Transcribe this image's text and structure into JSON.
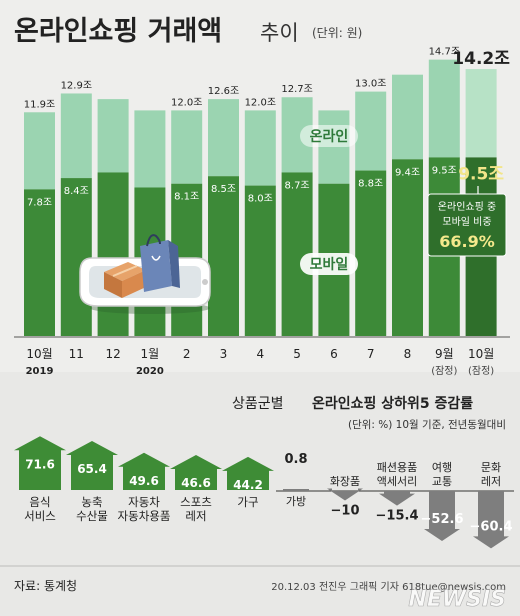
{
  "header": {
    "title": "온라인쇼핑 거래액",
    "title_suffix": "추이",
    "unit": "(단위: 원)"
  },
  "chart_data": [
    {
      "type": "bar",
      "title": "온라인쇼핑 거래액 추이",
      "unit": "(단위: 원)",
      "categories": [
        "10월",
        "11",
        "12",
        "1월",
        "2",
        "3",
        "4",
        "5",
        "6",
        "7",
        "8",
        "9월",
        "10월"
      ],
      "year_labels": [
        {
          "index": 0,
          "text": "2019"
        },
        {
          "index": 3,
          "text": "2020"
        }
      ],
      "sublabels": [
        {
          "index": 11,
          "text": "(잠정)"
        },
        {
          "index": 12,
          "text": "(잠정)"
        }
      ],
      "total_values": [
        11.9,
        12.9,
        12.6,
        12.0,
        12.0,
        12.6,
        12.0,
        12.7,
        12.0,
        13.0,
        13.9,
        14.7,
        14.2
      ],
      "mobile_values": [
        7.8,
        8.4,
        8.7,
        7.9,
        8.1,
        8.5,
        8.0,
        8.7,
        8.1,
        8.8,
        9.4,
        9.5,
        9.5
      ],
      "total_labels": [
        "11.9조",
        "12.9조",
        "",
        "",
        "12.0조",
        "12.6조",
        "12.0조",
        "12.7조",
        "",
        "13.0조",
        "",
        "14.7조",
        "14.2조"
      ],
      "mobile_labels": [
        "7.8조",
        "8.4조",
        "",
        "",
        "8.1조",
        "8.5조",
        "8.0조",
        "8.7조",
        "",
        "8.8조",
        "9.4조",
        "9.5조",
        "9.5조"
      ],
      "series": [
        {
          "name": "온라인",
          "color": "#9bd4b1"
        },
        {
          "name": "모바일",
          "color": "#3d8a38"
        }
      ],
      "ylim": [
        0,
        15
      ],
      "callout": {
        "line1": "온라인쇼핑 중",
        "line2": "모바일 비중",
        "value": "66.9%"
      }
    },
    {
      "type": "bar",
      "title": "상품군별 온라인쇼핑 상하위5 증감률",
      "title_prefix": "상품군별",
      "title_bold": "온라인쇼핑 상하위5 증감률",
      "subtitle": "(단위: %) 10월 기준, 전년동월대비",
      "top5": [
        {
          "label": [
            "음식",
            "서비스"
          ],
          "value": 71.6
        },
        {
          "label": [
            "농축",
            "수산물"
          ],
          "value": 65.4
        },
        {
          "label": [
            "자동차",
            "자동차용품"
          ],
          "value": 49.6
        },
        {
          "label": [
            "스포츠",
            "레저"
          ],
          "value": 46.6
        },
        {
          "label": [
            "가구"
          ],
          "value": 44.2
        }
      ],
      "bottom5": [
        {
          "label": [
            "가방"
          ],
          "value": 0.8,
          "value_text": "0.8"
        },
        {
          "label": [
            "화장품"
          ],
          "value": -10,
          "value_text": "−10"
        },
        {
          "label": [
            "패션용품",
            "액세서리"
          ],
          "value": -15.4,
          "value_text": "−15.4"
        },
        {
          "label": [
            "여행",
            "교통"
          ],
          "value": -52.6,
          "value_text": "−52.6"
        },
        {
          "label": [
            "문화",
            "레저"
          ],
          "value": -60.4,
          "value_text": "−60.4"
        }
      ],
      "top_color": "#3e8c36",
      "bottom_color": "#7e7e7e"
    }
  ],
  "footer": {
    "source": "자료: 통계청",
    "credit": "20.12.03 전진우 그래픽 기자 618tue@newsis.com",
    "watermark": "NEWSIS"
  }
}
